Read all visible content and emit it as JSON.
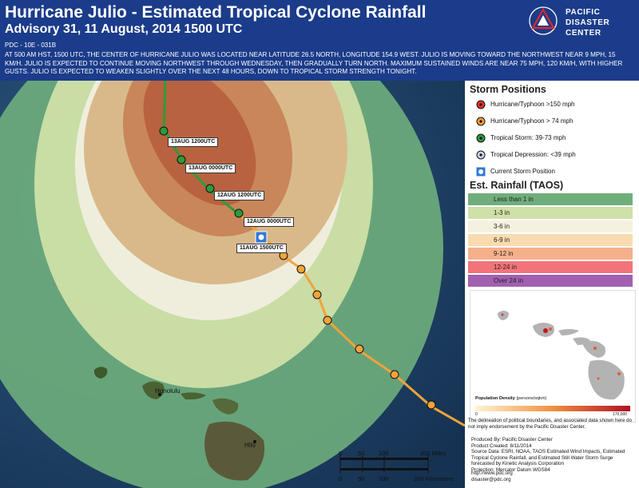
{
  "header": {
    "title": "Hurricane Julio - Estimated Tropical Cyclone Rainfall",
    "subtitle": "Advisory 31, 11 August, 2014 1500 UTC",
    "code": "PDC - 10E - 031B",
    "advisory": "AT 500 AM HST, 1500 UTC, THE CENTER OF HURRICANE JULIO WAS LOCATED NEAR LATITUDE 26.5 NORTH, LONGITUDE 154.9 WEST. JULIO IS MOVING TOWARD THE NORTHWEST NEAR 9 MPH, 15 KM/H. JULIO IS EXPECTED TO CONTINUE MOVING NORTHWEST THROUGH WEDNESDAY, THEN GRADUALLY TURN NORTH. MAXIMUM SUSTAINED WINDS ARE NEAR 75 MPH, 120 KM/H, WITH HIGHER GUSTS. JULIO IS EXPECTED TO WEAKEN SLIGHTLY OVER THE NEXT 48 HOURS, DOWN TO TROPICAL STORM STRENGTH TONIGHT."
  },
  "logo": {
    "line1": "PACIFIC",
    "line2": "DISASTER",
    "line3": "CENTER"
  },
  "map": {
    "advisory_labels": [
      "13AUG 1200UTC",
      "13AUG 0000UTC",
      "12AUG 1200UTC",
      "12AUG 0000UTC",
      "11AUG 1500UTC"
    ],
    "cities": {
      "honolulu": "Honolulu",
      "hilo": "Hilo"
    },
    "scale": {
      "miles_ticks": [
        "0",
        "50",
        "100",
        "200 Miles"
      ],
      "km_ticks": [
        "0",
        "50",
        "100",
        "200 Kilometers"
      ]
    }
  },
  "legend": {
    "storm_positions_title": "Storm Positions",
    "storm_positions": [
      {
        "label": "Hurricane/Typhoon >150 mph",
        "color": "#e8302a",
        "icon": "hurricane-symbol-red"
      },
      {
        "label": "Hurricane/Typhoon > 74 mph",
        "color": "#f5a03a",
        "icon": "hurricane-symbol-orange"
      },
      {
        "label": "Tropical Storm: 39-73 mph",
        "color": "#2e9a3c",
        "icon": "hurricane-symbol-green"
      },
      {
        "label": "Tropical Depression: <39 mph",
        "color": "#c9d6ea",
        "icon": "hurricane-symbol-lightblue"
      },
      {
        "label": "Current Storm Position",
        "color": "#2f78d8",
        "icon": "current-position-icon"
      }
    ],
    "rainfall_title": "Est. Rainfall (TAOS)",
    "rainfall": [
      {
        "label": "Less than 1 in",
        "color": "#6fae7c"
      },
      {
        "label": "1-3 in",
        "color": "#cfe0a8"
      },
      {
        "label": "3-6 in",
        "color": "#f4f1de"
      },
      {
        "label": "6-9 in",
        "color": "#f8dcb0"
      },
      {
        "label": "9-12 in",
        "color": "#f5b08a"
      },
      {
        "label": "12-24 in",
        "color": "#f2747a"
      },
      {
        "label": "Over 24 in",
        "color": "#a260b0"
      }
    ],
    "population": {
      "title": "Population Density",
      "units": "(persons/sqkm)",
      "min": "0",
      "max": "170,000"
    },
    "disclaimer": "The delineation of political boundaries, and associated data shown here do not imply endorsement by the Pacific Disaster Center.",
    "credits": {
      "produced_by": "Produced By: Pacific Disaster Center",
      "created": "Product Created: 8/11/2014",
      "source": "Source Data: ESRI, NOAA, TAOS Estimated Wind Impacts, Estimated Tropical Cyclone Rainfall, and Estimated Still Water Storm Surge forecasted by Kinetic Analysis Corporation",
      "projection": "Projection: Mercator Datum WGS84"
    },
    "url": "http://www.pdc.org",
    "email": "disaster@pdc.org"
  }
}
